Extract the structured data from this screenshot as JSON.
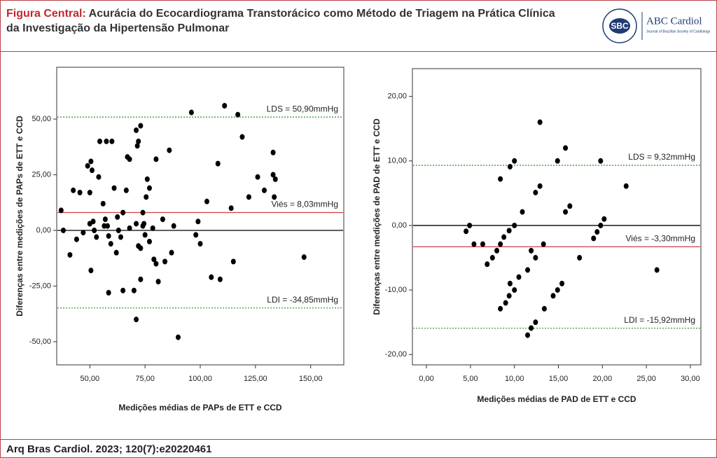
{
  "header": {
    "title_label": "Figura Central:",
    "title": "Acurácia do Ecocardiograma Transtorácico como Método de Triagem na Prática Clínica da Investigação da Hipertensão Pulmonar",
    "logo": "SBC",
    "journal": "ABC Cardiol",
    "journal_subtitle": "Journal of Brazilian Society of Cardiology"
  },
  "footer": {
    "citation": "Arq Bras Cardiol. 2023; 120(7):e20220461"
  },
  "chart_data": [
    {
      "type": "scatter",
      "xlabel": "Medições médias de PAPs de ETT e CCD",
      "ylabel": "Diferenças entre medições de PAPs de ETT e CCD",
      "color": "#000000",
      "xlim": [
        35,
        165
      ],
      "ylim": [
        -60.4,
        73.3
      ],
      "xticks": [
        {
          "value": 50,
          "label": "50,00"
        },
        {
          "value": 75,
          "label": "75,00"
        },
        {
          "value": 100,
          "label": "100,00"
        },
        {
          "value": 125,
          "label": "125,00"
        },
        {
          "value": 150,
          "label": "150,00"
        }
      ],
      "yticks": [
        {
          "value": 50,
          "label": "50,00"
        },
        {
          "value": 25,
          "label": "25,00"
        },
        {
          "value": 0,
          "label": "0,00"
        },
        {
          "value": -25,
          "label": "-25,00"
        },
        {
          "value": -50,
          "label": "-50,00"
        }
      ],
      "reference_lines": [
        {
          "value": 0,
          "color": "#000000",
          "style": "solid"
        },
        {
          "value": 50.9,
          "label": "LDS = 50,90mmHg",
          "color": "#3a9a3a",
          "style": "dotted"
        },
        {
          "value": 8.03,
          "label": "Viés = 8,03mmHg",
          "color": "#d04040",
          "style": "solid"
        },
        {
          "value": -34.85,
          "label": "LDI = -34,85mmHg",
          "color": "#3a9a3a",
          "style": "dotted"
        }
      ],
      "x": [
        37,
        38,
        41,
        42.5,
        44,
        45.5,
        47,
        49,
        50,
        50.5,
        51,
        50,
        51.5,
        52,
        50.5,
        53,
        54,
        54.5,
        57.5,
        56,
        56.5,
        57,
        58,
        58.5,
        60,
        59.5,
        58.5,
        61,
        62.5,
        63,
        64,
        62,
        65,
        65,
        66.5,
        67,
        68,
        68,
        71,
        71.5,
        72,
        73,
        71,
        72,
        70,
        73,
        74,
        75,
        74,
        74.5,
        75.5,
        76,
        77,
        77,
        78.5,
        80,
        79,
        80,
        81,
        83,
        84,
        86,
        88,
        87,
        90,
        73,
        71,
        96,
        98,
        99,
        100,
        103,
        105,
        108,
        109,
        111,
        114,
        115,
        117,
        119,
        122,
        126,
        129,
        133,
        133,
        133.5,
        134,
        147
      ],
      "values": [
        9,
        0,
        -11,
        18,
        -4,
        17,
        -1,
        29,
        17,
        31,
        27,
        3,
        4,
        0,
        -18,
        -3,
        24,
        40,
        40,
        12,
        2,
        5,
        2,
        -2.5,
        40,
        -6,
        -28,
        19,
        6,
        0,
        -3,
        -10,
        8,
        -27,
        18,
        33,
        1,
        32,
        45,
        38,
        40,
        47,
        3,
        -7,
        -27,
        -8,
        2,
        -2,
        8,
        3,
        15,
        23,
        19,
        -5,
        1,
        32,
        -13,
        -15,
        -23,
        5,
        -14,
        36,
        2,
        -10,
        -48,
        -22,
        -40,
        53,
        -2,
        4,
        -6,
        13,
        -21,
        30,
        -22,
        56,
        10,
        -14,
        52,
        42,
        15,
        24,
        18,
        35,
        25,
        15,
        23,
        -12
      ]
    },
    {
      "type": "scatter",
      "xlabel": "Medições médias de PAD de ETT e CCD",
      "ylabel": "Diferenças entre medições de PAD de ETT e CCD",
      "color": "#000000",
      "xlim": [
        -1.6,
        31.2
      ],
      "ylim": [
        -21.6,
        24.3
      ],
      "xticks": [
        {
          "value": 0,
          "label": "0,00"
        },
        {
          "value": 5,
          "label": "5,00"
        },
        {
          "value": 10,
          "label": "10,00"
        },
        {
          "value": 15,
          "label": "15,00"
        },
        {
          "value": 20,
          "label": "20,00"
        },
        {
          "value": 25,
          "label": "25,00"
        },
        {
          "value": 30,
          "label": "30,00"
        }
      ],
      "yticks": [
        {
          "value": 20,
          "label": "20,00"
        },
        {
          "value": 10,
          "label": "10,00"
        },
        {
          "value": 0,
          "label": "0,00"
        },
        {
          "value": -10,
          "label": "-10,00"
        },
        {
          "value": -20,
          "label": "-20,00"
        }
      ],
      "reference_lines": [
        {
          "value": 0,
          "color": "#000000",
          "style": "solid"
        },
        {
          "value": 9.32,
          "label": "LDS = 9,32mmHg",
          "color": "#3a9a3a",
          "style": "dotted"
        },
        {
          "value": -3.3,
          "label": "Viés = -3,30mmHg",
          "color": "#d04040",
          "style": "solid"
        },
        {
          "value": -15.92,
          "label": "LDI = -15,92mmHg",
          "color": "#3a9a3a",
          "style": "dotted"
        }
      ],
      "x": [
        4.5,
        4.9,
        5.4,
        6.4,
        6.9,
        7.5,
        8,
        8.4,
        8.4,
        8.4,
        8.8,
        9,
        9.4,
        9.5,
        9.5,
        9.4,
        10,
        10,
        10,
        10.5,
        10.9,
        11.5,
        11.5,
        11.9,
        11.9,
        12.4,
        12.4,
        12.4,
        12.9,
        12.9,
        13.3,
        13.4,
        14.4,
        14.9,
        14.9,
        15.4,
        15.8,
        15.8,
        16.3,
        17.4,
        19,
        19.4,
        19.8,
        19.8,
        20.2,
        22.7,
        26.2
      ],
      "values": [
        -0.9,
        0,
        -2.9,
        -2.9,
        -6,
        -5,
        -3.9,
        7.2,
        -12.9,
        -2.9,
        -1.8,
        -12,
        -0.8,
        9.1,
        -9,
        -10.9,
        0,
        -10,
        10,
        -8,
        2.1,
        -6.9,
        -17,
        -15.9,
        -3.9,
        5.1,
        -15,
        -5,
        6.1,
        16,
        -2.9,
        -12.9,
        -10.9,
        -10,
        10,
        -9,
        12,
        2.1,
        3,
        -5,
        -2,
        -1,
        0,
        10,
        1,
        6.1,
        -6.9
      ]
    }
  ]
}
